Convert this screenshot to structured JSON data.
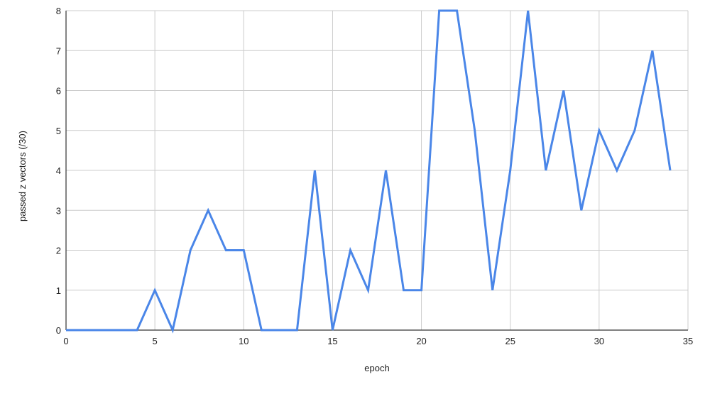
{
  "chart_data": {
    "type": "line",
    "title": "",
    "xlabel": "epoch",
    "ylabel": "passed z vectors (/30)",
    "xlim": [
      0,
      35
    ],
    "ylim": [
      0,
      8
    ],
    "x_ticks": [
      0,
      5,
      10,
      15,
      20,
      25,
      30,
      35
    ],
    "y_ticks": [
      0,
      1,
      2,
      3,
      4,
      5,
      6,
      7,
      8
    ],
    "grid": true,
    "legend": "none",
    "line_color": "#4a86e8",
    "series": [
      {
        "x": [
          0,
          1,
          2,
          3,
          4,
          5,
          6,
          7,
          8,
          9,
          10,
          11,
          12,
          13,
          14,
          15,
          16,
          17,
          18,
          19,
          20,
          21,
          22,
          23,
          24,
          25,
          26,
          27,
          28,
          29,
          30,
          31,
          32,
          33,
          34
        ],
        "values": [
          0,
          0,
          0,
          0,
          0,
          1,
          0,
          2,
          3,
          2,
          2,
          0,
          0,
          0,
          4,
          0,
          2,
          1,
          4,
          1,
          1,
          8,
          8,
          5,
          1,
          4,
          8,
          4,
          6,
          3,
          5,
          4,
          5,
          7,
          4
        ]
      }
    ]
  }
}
